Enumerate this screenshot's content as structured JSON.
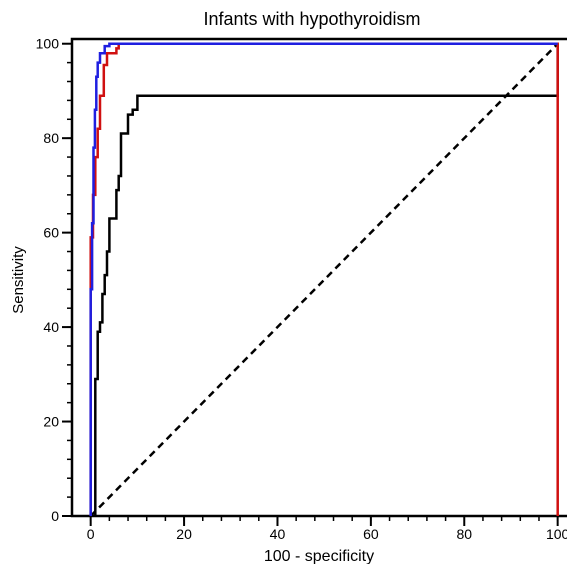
{
  "chart_data": {
    "type": "line",
    "title": "Infants with hypothyroidism",
    "xlabel": "100 - specificity",
    "ylabel": "Sensitivity",
    "xlim": [
      -4,
      102
    ],
    "ylim": [
      0,
      101
    ],
    "x_ticks": [
      0,
      20,
      40,
      60,
      80,
      100
    ],
    "y_ticks": [
      0,
      20,
      40,
      60,
      80,
      100
    ],
    "x_tick_labels": [
      "0",
      "20",
      "40",
      "60",
      "80",
      "100"
    ],
    "y_tick_labels": [
      "0",
      "20",
      "40",
      "60",
      "80",
      "100"
    ],
    "minor_tick_step": 4,
    "grid": false,
    "legend": "none",
    "reference_line": {
      "x": [
        0,
        100
      ],
      "y": [
        0,
        100
      ],
      "style": "dashed",
      "color": "#000000"
    },
    "series": [
      {
        "color": "#1f1fe0",
        "x": [
          0,
          0,
          0.3,
          0.3,
          0.6,
          0.6,
          0.9,
          0.9,
          1.2,
          1.2,
          1.5,
          1.5,
          2.0,
          2.0,
          3.0,
          3.0,
          4.0,
          4.0,
          6.0,
          100
        ],
        "y": [
          0,
          48,
          48,
          62,
          62,
          78,
          78,
          86,
          86,
          93,
          93,
          96,
          96,
          98,
          98,
          99.5,
          99.5,
          100,
          100,
          100
        ]
      },
      {
        "color": "#d01010",
        "x": [
          0,
          0,
          0.5,
          0.5,
          1.0,
          1.0,
          1.5,
          1.5,
          2.0,
          2.0,
          2.8,
          2.8,
          3.5,
          3.5,
          5.0,
          5.0,
          5.5,
          5.5,
          6.0,
          6.0,
          100,
          100
        ],
        "y": [
          0,
          59,
          59,
          68,
          68,
          76,
          76,
          82,
          82,
          89,
          89,
          95.5,
          95.5,
          98,
          98,
          98,
          98,
          99,
          99,
          100,
          100,
          0
        ]
      },
      {
        "color": "#000000",
        "x": [
          1.0,
          1.0,
          1.5,
          1.5,
          2.0,
          2.0,
          2.5,
          2.5,
          3.0,
          3.0,
          3.5,
          3.5,
          4.0,
          4.0,
          4.5,
          4.5,
          5.5,
          5.5,
          6.0,
          6.0,
          6.5,
          6.5,
          8.0,
          8.0,
          9.0,
          9.0,
          10.0,
          10.0,
          100,
          100,
          100
        ],
        "y": [
          0,
          29,
          29,
          39,
          39,
          41,
          41,
          47,
          47,
          51,
          51,
          56,
          56,
          63,
          63,
          63,
          63,
          69,
          69,
          72,
          72,
          81,
          81,
          85,
          85,
          86,
          86,
          89,
          89,
          89,
          100
        ]
      }
    ]
  }
}
